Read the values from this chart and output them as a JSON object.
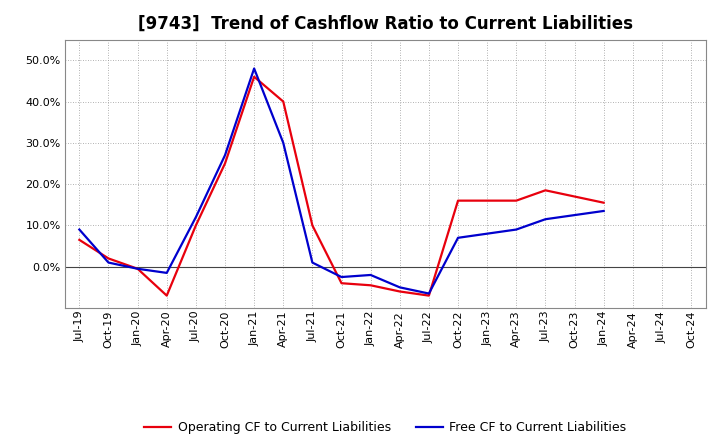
{
  "title": "[9743]  Trend of Cashflow Ratio to Current Liabilities",
  "x_labels": [
    "Jul-19",
    "Oct-19",
    "Jan-20",
    "Apr-20",
    "Jul-20",
    "Oct-20",
    "Jan-21",
    "Apr-21",
    "Jul-21",
    "Oct-21",
    "Jan-22",
    "Apr-22",
    "Jul-22",
    "Oct-22",
    "Jan-23",
    "Apr-23",
    "Jul-23",
    "Oct-23",
    "Jan-24",
    "Apr-24",
    "Jul-24",
    "Oct-24"
  ],
  "operating_cf": [
    0.065,
    0.02,
    -0.005,
    -0.07,
    0.1,
    0.25,
    0.46,
    0.4,
    0.1,
    -0.04,
    -0.045,
    -0.06,
    -0.07,
    0.16,
    0.16,
    0.16,
    0.185,
    0.17,
    0.155,
    null,
    null,
    null
  ],
  "free_cf": [
    0.09,
    0.01,
    -0.005,
    -0.015,
    0.12,
    0.27,
    0.48,
    0.3,
    0.01,
    -0.025,
    -0.02,
    -0.05,
    -0.065,
    0.07,
    0.08,
    0.09,
    0.115,
    0.125,
    0.135,
    null,
    null,
    null
  ],
  "operating_color": "#e8000d",
  "free_color": "#0000cd",
  "ylim_min": -0.1,
  "ylim_max": 0.55,
  "yticks": [
    0.0,
    0.1,
    0.2,
    0.3,
    0.4,
    0.5
  ],
  "background_color": "#ffffff",
  "plot_bg_color": "#ffffff",
  "grid_color": "#aaaaaa",
  "legend_operating": "Operating CF to Current Liabilities",
  "legend_free": "Free CF to Current Liabilities",
  "title_fontsize": 12,
  "tick_fontsize": 8,
  "legend_fontsize": 9
}
